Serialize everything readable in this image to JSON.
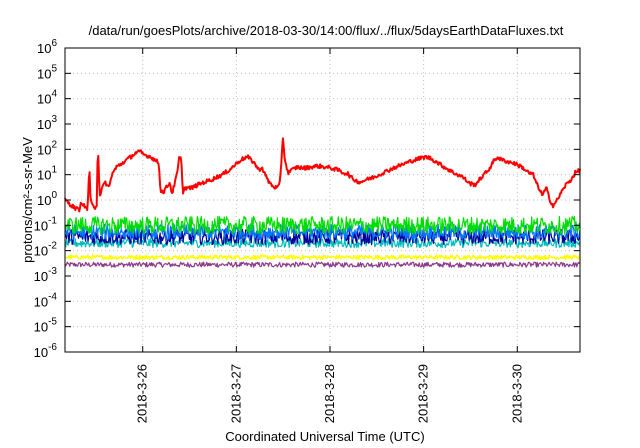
{
  "chart_data": {
    "type": "line",
    "title": "/data/run/goesPlots/archive/2018-03-30/14:00/flux/../flux/5daysEarthDataFluxes.txt",
    "xlabel": "Coordinated Universal Time (UTC)",
    "ylabel": "protons/cm²-s-sr-MeV",
    "y_scale": "log",
    "ylim": [
      1e-06,
      1000000.0
    ],
    "xlim": [
      0,
      5.5
    ],
    "x_origin": "2018-03-25 04:00 UTC",
    "grid": true,
    "y_ticks": [
      {
        "value": 1e-06,
        "base": "10",
        "exp": "-6"
      },
      {
        "value": 1e-05,
        "base": "10",
        "exp": "-5"
      },
      {
        "value": 0.0001,
        "base": "10",
        "exp": "-4"
      },
      {
        "value": 0.001,
        "base": "10",
        "exp": "-3"
      },
      {
        "value": 0.01,
        "base": "10",
        "exp": "-2"
      },
      {
        "value": 0.1,
        "base": "10",
        "exp": "-1"
      },
      {
        "value": 1,
        "base": "10",
        "exp": "0"
      },
      {
        "value": 10,
        "base": "10",
        "exp": "1"
      },
      {
        "value": 100,
        "base": "10",
        "exp": "2"
      },
      {
        "value": 1000,
        "base": "10",
        "exp": "3"
      },
      {
        "value": 10000,
        "base": "10",
        "exp": "4"
      },
      {
        "value": 100000,
        "base": "10",
        "exp": "5"
      },
      {
        "value": 1000000,
        "base": "10",
        "exp": "6"
      }
    ],
    "x_ticks": [
      {
        "value": 0.83,
        "label": "2018-3-26"
      },
      {
        "value": 1.83,
        "label": "2018-3-27"
      },
      {
        "value": 2.83,
        "label": "2018-3-28"
      },
      {
        "value": 3.83,
        "label": "2018-3-29"
      },
      {
        "value": 4.83,
        "label": "2018-3-30"
      }
    ],
    "series": [
      {
        "color": "#ff0000",
        "noise": 0.08,
        "width": 2,
        "points": [
          [
            0.0,
            1.0
          ],
          [
            0.05,
            0.7
          ],
          [
            0.1,
            0.5
          ],
          [
            0.15,
            0.4
          ],
          [
            0.18,
            0.9
          ],
          [
            0.2,
            0.6
          ],
          [
            0.22,
            0.5
          ],
          [
            0.24,
            0.4
          ],
          [
            0.26,
            25
          ],
          [
            0.27,
            1.2
          ],
          [
            0.29,
            0.6
          ],
          [
            0.32,
            0.5
          ],
          [
            0.34,
            0.7
          ],
          [
            0.35,
            200
          ],
          [
            0.37,
            1.5
          ],
          [
            0.4,
            3.0
          ],
          [
            0.43,
            5.0
          ],
          [
            0.47,
            3.0
          ],
          [
            0.5,
            10
          ],
          [
            0.55,
            20
          ],
          [
            0.62,
            30
          ],
          [
            0.7,
            50
          ],
          [
            0.75,
            70
          ],
          [
            0.8,
            80
          ],
          [
            0.85,
            60
          ],
          [
            0.92,
            50
          ],
          [
            0.97,
            35
          ],
          [
            1.0,
            30
          ],
          [
            1.02,
            2.5
          ],
          [
            1.05,
            2.0
          ],
          [
            1.08,
            3.0
          ],
          [
            1.12,
            5.0
          ],
          [
            1.14,
            1.8
          ],
          [
            1.16,
            3.0
          ],
          [
            1.2,
            12
          ],
          [
            1.22,
            50
          ],
          [
            1.24,
            40
          ],
          [
            1.26,
            2.0
          ],
          [
            1.28,
            3.0
          ],
          [
            1.35,
            3.0
          ],
          [
            1.42,
            4.0
          ],
          [
            1.48,
            5.0
          ],
          [
            1.55,
            6.0
          ],
          [
            1.62,
            8.0
          ],
          [
            1.68,
            10
          ],
          [
            1.75,
            15
          ],
          [
            1.82,
            25
          ],
          [
            1.88,
            40
          ],
          [
            1.95,
            50
          ],
          [
            2.02,
            30
          ],
          [
            2.07,
            15
          ],
          [
            2.1,
            20
          ],
          [
            2.15,
            8.0
          ],
          [
            2.18,
            5.0
          ],
          [
            2.22,
            3.5
          ],
          [
            2.26,
            3.0
          ],
          [
            2.29,
            3.5
          ],
          [
            2.3,
            8.0
          ],
          [
            2.32,
            120
          ],
          [
            2.33,
            400
          ],
          [
            2.34,
            60
          ],
          [
            2.36,
            25
          ],
          [
            2.38,
            12
          ],
          [
            2.42,
            15
          ],
          [
            2.48,
            20
          ],
          [
            2.55,
            18
          ],
          [
            2.62,
            20
          ],
          [
            2.7,
            22
          ],
          [
            2.78,
            20
          ],
          [
            2.85,
            18
          ],
          [
            2.92,
            15
          ],
          [
            2.97,
            12
          ],
          [
            3.02,
            11
          ],
          [
            3.05,
            8.0
          ],
          [
            3.1,
            6.0
          ],
          [
            3.15,
            5.0
          ],
          [
            3.2,
            6.0
          ],
          [
            3.3,
            8.0
          ],
          [
            3.4,
            12
          ],
          [
            3.5,
            18
          ],
          [
            3.6,
            25
          ],
          [
            3.7,
            35
          ],
          [
            3.8,
            45
          ],
          [
            3.85,
            50
          ],
          [
            3.9,
            45
          ],
          [
            3.95,
            35
          ],
          [
            4.05,
            20
          ],
          [
            4.15,
            12
          ],
          [
            4.25,
            8.0
          ],
          [
            4.32,
            4.5
          ],
          [
            4.38,
            4.0
          ],
          [
            4.45,
            8.0
          ],
          [
            4.52,
            15
          ],
          [
            4.58,
            35
          ],
          [
            4.62,
            50
          ],
          [
            4.65,
            40
          ],
          [
            4.7,
            35
          ],
          [
            4.8,
            28
          ],
          [
            4.88,
            20
          ],
          [
            4.95,
            12
          ],
          [
            5.0,
            10
          ],
          [
            5.03,
            5.0
          ],
          [
            5.06,
            3.0
          ],
          [
            5.1,
            1.5
          ],
          [
            5.14,
            3.0
          ],
          [
            5.18,
            1.0
          ],
          [
            5.21,
            0.6
          ],
          [
            5.25,
            0.9
          ],
          [
            5.3,
            2.0
          ],
          [
            5.35,
            4.0
          ],
          [
            5.4,
            6.0
          ],
          [
            5.45,
            12
          ],
          [
            5.5,
            15
          ]
        ]
      },
      {
        "color": "#00dd00",
        "level": 0.1,
        "noise": 0.35,
        "width": 1.2
      },
      {
        "color": "#0077ff",
        "level": 0.055,
        "noise": 0.3,
        "width": 1.2
      },
      {
        "color": "#00009b",
        "level": 0.035,
        "noise": 0.3,
        "width": 1.2
      },
      {
        "color": "#00bbbb",
        "level": 0.02,
        "noise": 0.18,
        "width": 1.2
      },
      {
        "color": "#ffff00",
        "level": 0.0055,
        "noise": 0.08,
        "width": 1.5
      },
      {
        "color": "#8b3a8b",
        "level": 0.0028,
        "noise": 0.1,
        "width": 1.2
      }
    ]
  }
}
